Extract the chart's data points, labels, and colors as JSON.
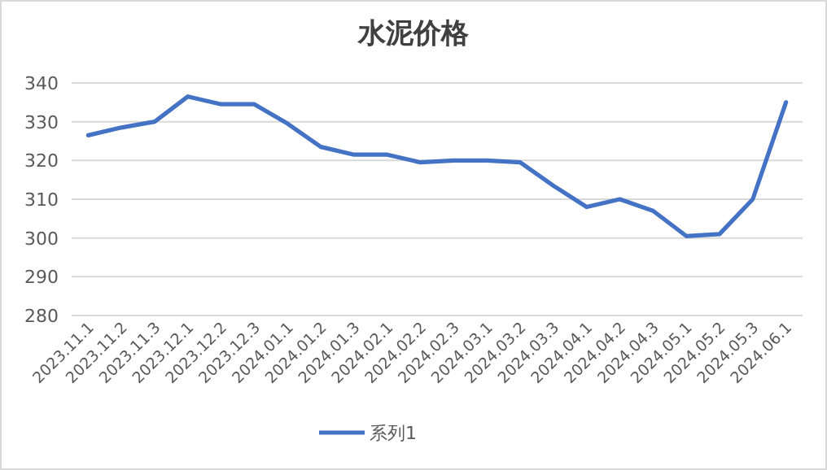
{
  "chart_data": {
    "type": "line",
    "title": "水泥价格",
    "categories": [
      "2023.11.1",
      "2023.11.2",
      "2023.11.3",
      "2023.12.1",
      "2023.12.2",
      "2023.12.3",
      "2024.01.1",
      "2024.01.2",
      "2024.01.3",
      "2024.02.1",
      "2024.02.2",
      "2024.02.3",
      "2024.03.1",
      "2024.03.2",
      "2024.03.3",
      "2024.04.1",
      "2024.04.2",
      "2024.04.3",
      "2024.05.1",
      "2024.05.2",
      "2024.05.3",
      "2024.06.1"
    ],
    "series": [
      {
        "name": "系列1",
        "color": "#4472c4",
        "values": [
          326.5,
          328.5,
          330,
          336.5,
          334.5,
          334.5,
          329.5,
          323.5,
          321.5,
          321.5,
          319.5,
          320,
          320,
          319.5,
          313.5,
          308,
          310,
          307,
          300.5,
          301,
          310,
          335
        ]
      }
    ],
    "ylim": [
      280,
      340
    ],
    "yticks": [
      280,
      290,
      300,
      310,
      320,
      330,
      340
    ],
    "grid": "y",
    "legend": "bottom",
    "marker": "none",
    "line_style": "solid"
  }
}
